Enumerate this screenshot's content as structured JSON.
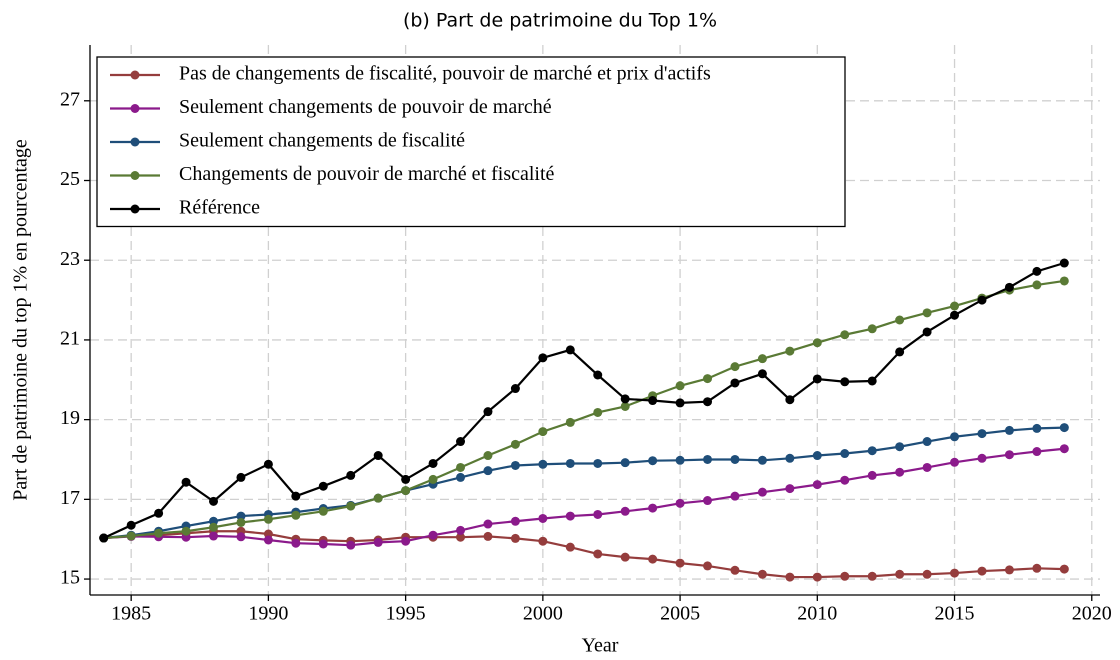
{
  "chart_data": {
    "type": "line",
    "title": "(b)  Part de patrimoine du Top 1%",
    "x_label": "Year",
    "y_label": "Part de patrimoine du top 1% en pourcentage",
    "x": [
      1984,
      1985,
      1986,
      1987,
      1988,
      1989,
      1990,
      1991,
      1992,
      1993,
      1994,
      1995,
      1996,
      1997,
      1998,
      1999,
      2000,
      2001,
      2002,
      2003,
      2004,
      2005,
      2006,
      2007,
      2008,
      2009,
      2010,
      2011,
      2012,
      2013,
      2014,
      2015,
      2016,
      2017,
      2018,
      2019
    ],
    "xlim": [
      1983.5,
      2020.3
    ],
    "xticks": [
      1985,
      1990,
      1995,
      2000,
      2005,
      2010,
      2015,
      2020
    ],
    "ylim": [
      14.6,
      28.4
    ],
    "yticks": [
      15,
      17,
      19,
      21,
      23,
      25,
      27
    ],
    "grid": true,
    "legend": "upper left",
    "series": [
      {
        "name": "Pas de changements de fiscalité, pouvoir de marché et prix d'actifs",
        "color": "#953d3d",
        "values": [
          16.03,
          16.08,
          16.1,
          16.15,
          16.2,
          16.2,
          16.13,
          16.0,
          15.97,
          15.95,
          15.98,
          16.05,
          16.05,
          16.05,
          16.07,
          16.02,
          15.95,
          15.8,
          15.63,
          15.55,
          15.5,
          15.4,
          15.33,
          15.22,
          15.12,
          15.05,
          15.05,
          15.07,
          15.07,
          15.12,
          15.12,
          15.15,
          15.2,
          15.23,
          15.27,
          15.25
        ]
      },
      {
        "name": "Seulement changements de pouvoir de marché",
        "color": "#8b1a8b",
        "values": [
          16.03,
          16.07,
          16.06,
          16.05,
          16.08,
          16.06,
          15.98,
          15.9,
          15.88,
          15.85,
          15.92,
          15.95,
          16.1,
          16.22,
          16.38,
          16.45,
          16.52,
          16.58,
          16.62,
          16.7,
          16.78,
          16.9,
          16.97,
          17.08,
          17.18,
          17.27,
          17.37,
          17.48,
          17.6,
          17.68,
          17.8,
          17.93,
          18.03,
          18.12,
          18.2,
          18.27
        ]
      },
      {
        "name": "Seulement changements de fiscalité",
        "color": "#1f4e79",
        "values": [
          16.03,
          16.1,
          16.2,
          16.33,
          16.45,
          16.58,
          16.62,
          16.68,
          16.77,
          16.85,
          17.03,
          17.22,
          17.38,
          17.55,
          17.72,
          17.85,
          17.88,
          17.9,
          17.9,
          17.92,
          17.97,
          17.98,
          18.0,
          18.0,
          17.98,
          18.03,
          18.1,
          18.15,
          18.22,
          18.32,
          18.45,
          18.57,
          18.65,
          18.73,
          18.78,
          18.8
        ]
      },
      {
        "name": "Changements de pouvoir de marché et fiscalité",
        "color": "#5a7a35",
        "values": [
          16.03,
          16.08,
          16.15,
          16.2,
          16.3,
          16.42,
          16.5,
          16.6,
          16.7,
          16.83,
          17.03,
          17.22,
          17.5,
          17.8,
          18.1,
          18.38,
          18.7,
          18.93,
          19.18,
          19.33,
          19.6,
          19.85,
          20.03,
          20.33,
          20.53,
          20.72,
          20.93,
          21.13,
          21.28,
          21.5,
          21.68,
          21.85,
          22.05,
          22.25,
          22.38,
          22.48
        ]
      },
      {
        "name": "Référence",
        "color": "#000000",
        "values": [
          16.03,
          16.35,
          16.65,
          17.43,
          16.95,
          17.55,
          17.88,
          17.08,
          17.33,
          17.6,
          18.1,
          17.5,
          17.9,
          18.45,
          19.2,
          19.78,
          20.55,
          20.75,
          20.12,
          19.52,
          19.48,
          19.42,
          19.45,
          19.92,
          20.15,
          19.5,
          20.02,
          19.95,
          19.97,
          20.7,
          21.2,
          21.62,
          22.0,
          22.32,
          22.72,
          22.93
        ]
      }
    ]
  }
}
